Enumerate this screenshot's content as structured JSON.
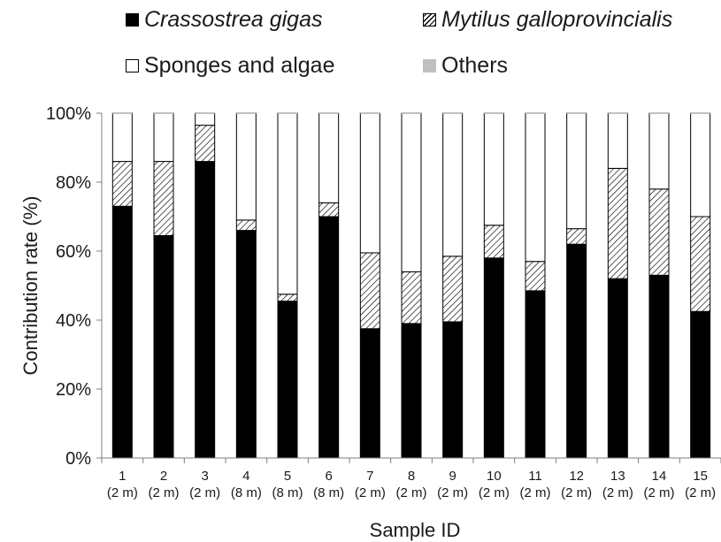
{
  "chart_data": {
    "type": "bar",
    "stacked": true,
    "categories": [
      "1",
      "2",
      "3",
      "4",
      "5",
      "6",
      "7",
      "8",
      "9",
      "10",
      "11",
      "12",
      "13",
      "14",
      "15"
    ],
    "depths": [
      "(2 m)",
      "(2 m)",
      "(2 m)",
      "(8 m)",
      "(8 m)",
      "(8 m)",
      "(2 m)",
      "(2 m)",
      "(2 m)",
      "(2 m)",
      "(2 m)",
      "(2 m)",
      "(2 m)",
      "(2 m)",
      "(2 m)"
    ],
    "series": [
      {
        "name": "Crassostrea gigas",
        "italic": true,
        "fill": "black",
        "color": "#000000",
        "values": [
          73,
          64.5,
          86,
          66,
          45.5,
          70,
          37.5,
          39,
          39.5,
          58,
          48.5,
          62,
          52,
          53,
          42.5
        ]
      },
      {
        "name": "Mytilus galloprovincialis",
        "italic": true,
        "fill": "hatch",
        "color": "#000000",
        "values": [
          13,
          21.5,
          10.5,
          3,
          2,
          4,
          22,
          15,
          19,
          9.5,
          8.5,
          4.5,
          32,
          25,
          27.5
        ]
      },
      {
        "name": "Sponges and algae",
        "italic": false,
        "fill": "white",
        "color": "#ffffff",
        "values": [
          14,
          14,
          3.5,
          31,
          52.5,
          26,
          40.5,
          46,
          41.5,
          32.5,
          43,
          33.5,
          16,
          22,
          30
        ]
      },
      {
        "name": "Others",
        "italic": false,
        "fill": "gray",
        "color": "#c0c0c0",
        "values": [
          0,
          0,
          0,
          0,
          0,
          0,
          0,
          0,
          0,
          0,
          0,
          0,
          0,
          0,
          0
        ]
      }
    ],
    "xlabel": "Sample ID",
    "ylabel": "Contribution rate (%)",
    "ylim": [
      0,
      100
    ],
    "yticks": [
      "0%",
      "20%",
      "40%",
      "60%",
      "80%",
      "100%"
    ],
    "grid": false,
    "legend": "top"
  }
}
